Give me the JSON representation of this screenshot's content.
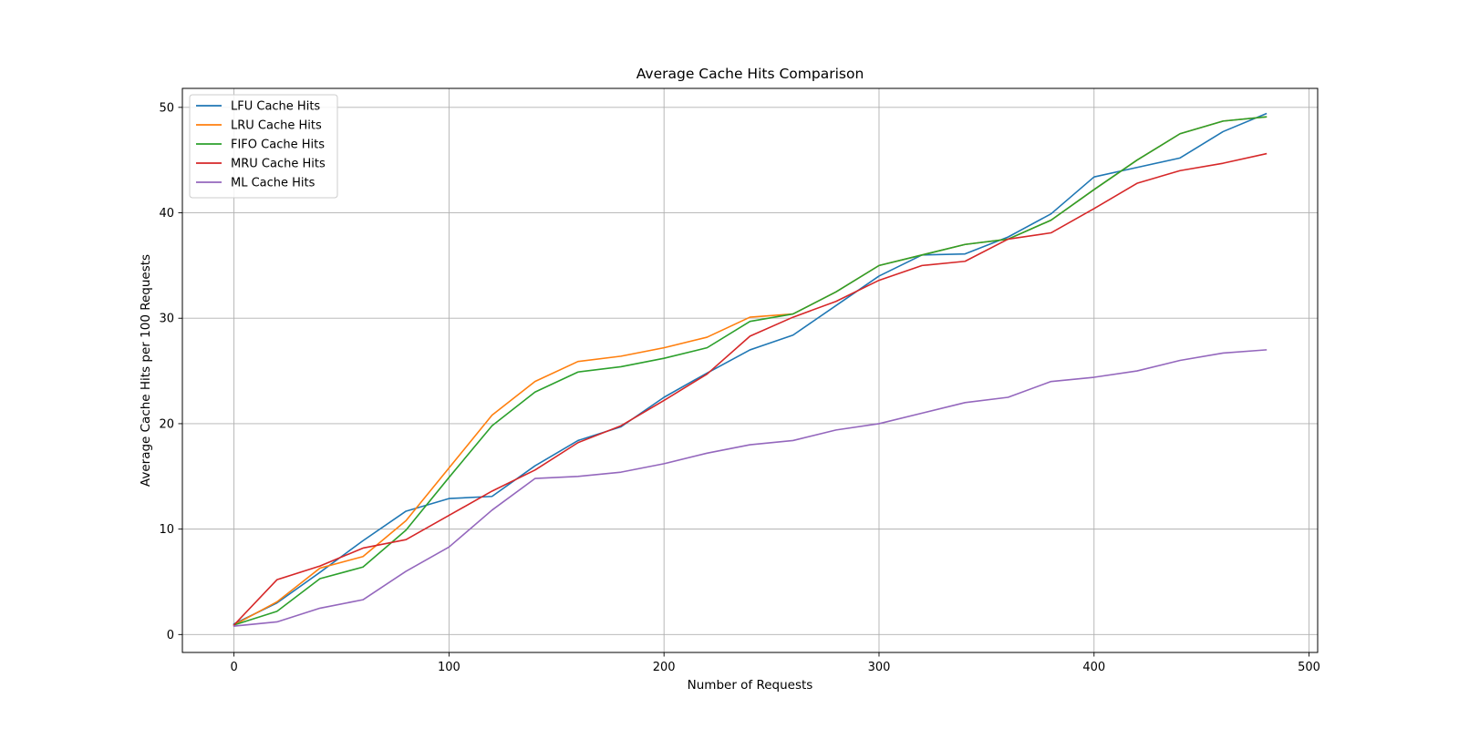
{
  "chart_data": {
    "type": "line",
    "title": "Average Cache Hits Comparison",
    "xlabel": "Number of Requests",
    "ylabel": "Average Cache Hits per 100 Requests",
    "xlim": [
      -24,
      504
    ],
    "ylim": [
      -1.7,
      51.8
    ],
    "xticks": [
      0,
      100,
      200,
      300,
      400,
      500
    ],
    "yticks": [
      0,
      10,
      20,
      30,
      40,
      50
    ],
    "grid": true,
    "legend_position": "top-left",
    "x": [
      0,
      20,
      40,
      60,
      80,
      100,
      120,
      140,
      160,
      180,
      200,
      220,
      240,
      260,
      280,
      300,
      320,
      340,
      360,
      380,
      400,
      420,
      440,
      460,
      480
    ],
    "series": [
      {
        "name": "LFU Cache Hits",
        "color": "#1f77b4",
        "values": [
          1.0,
          3.0,
          5.9,
          8.9,
          11.7,
          12.9,
          13.1,
          16.0,
          18.4,
          19.7,
          22.5,
          24.8,
          27.0,
          28.4,
          31.2,
          34.0,
          36.0,
          36.1,
          37.7,
          39.9,
          43.4,
          44.3,
          45.2,
          47.7,
          49.4
        ]
      },
      {
        "name": "LRU Cache Hits",
        "color": "#ff7f0e",
        "values": [
          0.9,
          3.1,
          6.3,
          7.4,
          10.8,
          15.8,
          20.8,
          24.0,
          25.9,
          26.4,
          27.2,
          28.2,
          30.1,
          30.4,
          32.5,
          35.0,
          36.0,
          37.0,
          37.5,
          39.3,
          42.2,
          45.0,
          47.5,
          48.7,
          49.1
        ]
      },
      {
        "name": "FIFO Cache Hits",
        "color": "#2ca02c",
        "values": [
          0.9,
          2.2,
          5.3,
          6.4,
          9.9,
          14.9,
          19.8,
          23.0,
          24.9,
          25.4,
          26.2,
          27.2,
          29.7,
          30.4,
          32.5,
          35.0,
          36.0,
          37.0,
          37.5,
          39.3,
          42.2,
          45.0,
          47.5,
          48.7,
          49.1
        ]
      },
      {
        "name": "MRU Cache Hits",
        "color": "#d62728",
        "values": [
          0.9,
          5.2,
          6.5,
          8.2,
          9.0,
          11.3,
          13.6,
          15.6,
          18.2,
          19.8,
          22.2,
          24.7,
          28.3,
          30.1,
          31.6,
          33.6,
          35.0,
          35.4,
          37.5,
          38.1,
          40.4,
          42.8,
          44.0,
          44.7,
          45.6
        ]
      },
      {
        "name": "ML Cache Hits",
        "color": "#9467bd",
        "values": [
          0.8,
          1.2,
          2.5,
          3.3,
          6.0,
          8.3,
          11.8,
          14.8,
          15.0,
          15.4,
          16.2,
          17.2,
          18.0,
          18.4,
          19.4,
          20.0,
          21.0,
          22.0,
          22.5,
          24.0,
          24.4,
          25.0,
          26.0,
          26.7,
          27.0
        ]
      }
    ]
  }
}
